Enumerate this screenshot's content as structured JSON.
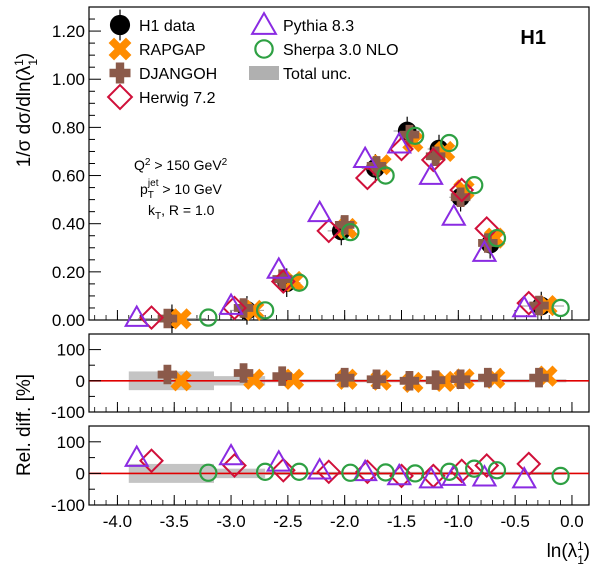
{
  "chart_data": {
    "type": "scatter",
    "experiment_label": "H1",
    "xlabel": "ln(λ",
    "xlabel_sub": "1",
    "xlabel_sup": "1",
    "xlabel_close": ")",
    "xlim": [
      -4.25,
      0.15
    ],
    "xticks": [
      -4.0,
      -3.5,
      -3.0,
      -2.5,
      -2.0,
      -1.5,
      -1.0,
      -0.5,
      0.0
    ],
    "xtick_labels": [
      "-4.0",
      "-3.5",
      "-3.0",
      "-2.5",
      "-2.0",
      "-1.5",
      "-1.0",
      "-0.5",
      "0.0"
    ],
    "cuts": {
      "line1_main": "Q",
      "line1_sup": "2",
      "line1_rest": " > 150 GeV",
      "line1_sup2": "2",
      "line2_main": "p",
      "line2_sub": "T",
      "line2_sup": "jet",
      "line2_rest": " > 10 GeV",
      "line3_main": "k",
      "line3_sub": "T",
      "line3_rest": ", R = 1.0"
    },
    "legend": [
      {
        "label": "H1 data",
        "marker": "data"
      },
      {
        "label": "RAPGAP",
        "marker": "cross"
      },
      {
        "label": "DJANGOH",
        "marker": "plus"
      },
      {
        "label": "Herwig 7.2",
        "marker": "diamond"
      },
      {
        "label": "Pythia 8.3",
        "marker": "triangle"
      },
      {
        "label": "Sherpa 3.0 NLO",
        "marker": "circle"
      },
      {
        "label": "Total unc.",
        "marker": "band"
      }
    ],
    "colors": {
      "data": "#000000",
      "rapgap": "#ff8c00",
      "djangoh": "#8b5a4a",
      "herwig": "#d0103a",
      "pythia": "#8a2be2",
      "sherpa": "#2ea043",
      "band": "#b0b0b0",
      "ratio_line": "#e00000"
    },
    "panels": [
      {
        "id": "main",
        "ylabel": "1/σ dσ/dln(λ",
        "ylabel_sub": "1",
        "ylabel_sup": "1",
        "ylabel_close": ")",
        "ylim": [
          0,
          1.3
        ],
        "yticks": [
          0,
          0.2,
          0.4,
          0.6,
          0.8,
          1.0,
          1.2
        ],
        "ytick_labels": [
          "0.00",
          "0.20",
          "0.40",
          "0.60",
          "0.80",
          "1.00",
          "1.20"
        ],
        "series": [
          {
            "name": "H1 data",
            "key": "data",
            "x": [
              -3.52,
              -2.86,
              -2.51,
              -2.03,
              -1.73,
              -1.45,
              -1.17,
              -0.98,
              -0.72,
              -0.27
            ],
            "y": [
              0.005,
              0.04,
              0.155,
              0.37,
              0.63,
              0.785,
              0.71,
              0.51,
              0.315,
              0.058
            ],
            "xerr": [
              0.3,
              0.15,
              0.12,
              0.12,
              0.12,
              0.12,
              0.1,
              0.1,
              0.1,
              0.2
            ]
          },
          {
            "name": "RAPGAP",
            "key": "rapgap",
            "x": [
              -3.44,
              -2.8,
              -2.45,
              -1.98,
              -1.68,
              -1.4,
              -1.12,
              -0.95,
              -0.68,
              -0.22
            ],
            "y": [
              0.005,
              0.04,
              0.16,
              0.38,
              0.645,
              0.74,
              0.7,
              0.54,
              0.34,
              0.06
            ]
          },
          {
            "name": "DJANGOH",
            "key": "djangoh",
            "x": [
              -3.56,
              -2.89,
              -2.55,
              -2.0,
              -1.72,
              -1.43,
              -1.2,
              -0.98,
              -0.74,
              -0.29
            ],
            "y": [
              0.006,
              0.05,
              0.17,
              0.395,
              0.64,
              0.77,
              0.68,
              0.51,
              0.32,
              0.06
            ]
          },
          {
            "name": "Herwig 7.2",
            "key": "herwig",
            "x": [
              -3.7,
              -2.97,
              -2.54,
              -2.14,
              -1.8,
              -1.5,
              -1.22,
              -0.97,
              -0.75,
              -0.38
            ],
            "y": [
              0.01,
              0.05,
              0.16,
              0.37,
              0.59,
              0.71,
              0.665,
              0.54,
              0.38,
              0.07
            ]
          },
          {
            "name": "Pythia 8.3",
            "key": "pythia",
            "x": [
              -3.83,
              -3.0,
              -2.58,
              -2.22,
              -1.82,
              -1.52,
              -1.24,
              -1.04,
              -0.77,
              -0.42
            ],
            "y": [
              0.01,
              0.06,
              0.21,
              0.445,
              0.67,
              0.73,
              0.6,
              0.43,
              0.28,
              0.05
            ]
          },
          {
            "name": "Sherpa 3.0 NLO",
            "key": "sherpa",
            "x": [
              -3.2,
              -2.7,
              -2.4,
              -1.95,
              -1.64,
              -1.38,
              -1.08,
              -0.86,
              -0.66,
              -0.1
            ],
            "y": [
              0.01,
              0.04,
              0.155,
              0.365,
              0.6,
              0.765,
              0.735,
              0.56,
              0.34,
              0.05
            ]
          }
        ],
        "band": []
      },
      {
        "id": "ratio1",
        "ylabel": "Rel. diff. [%]",
        "ylim": [
          -100,
          150
        ],
        "yticks": [
          -100,
          0,
          100
        ],
        "ytick_labels": [
          "-100",
          "0",
          "100"
        ],
        "series": [
          {
            "name": "RAPGAP",
            "key": "rapgap",
            "x": [
              -3.44,
              -2.8,
              -2.45,
              -1.98,
              -1.68,
              -1.4,
              -1.12,
              -0.95,
              -0.68,
              -0.22
            ],
            "y": [
              0,
              5,
              5,
              5,
              2,
              -5,
              -2,
              6,
              8,
              15
            ]
          },
          {
            "name": "DJANGOH",
            "key": "djangoh",
            "x": [
              -3.56,
              -2.89,
              -2.55,
              -2.0,
              -1.72,
              -1.43,
              -1.2,
              -0.98,
              -0.74,
              -0.29
            ],
            "y": [
              20,
              25,
              15,
              10,
              5,
              0,
              2,
              5,
              10,
              10
            ]
          }
        ],
        "band": [
          {
            "x0": -3.9,
            "x1": -3.15,
            "lo": -30,
            "hi": 30
          },
          {
            "x0": -3.15,
            "x1": -2.7,
            "lo": -15,
            "hi": 15
          },
          {
            "x0": -2.7,
            "x1": -0.05,
            "lo": -5,
            "hi": 5
          }
        ]
      },
      {
        "id": "ratio2",
        "ylabel": "",
        "ylim": [
          -100,
          150
        ],
        "yticks": [
          -100,
          0,
          100
        ],
        "ytick_labels": [
          "-100",
          "0",
          "100"
        ],
        "series": [
          {
            "name": "Herwig 7.2",
            "key": "herwig",
            "x": [
              -3.7,
              -2.97,
              -2.54,
              -2.14,
              -1.8,
              -1.5,
              -1.22,
              -0.97,
              -0.75,
              -0.38
            ],
            "y": [
              40,
              25,
              10,
              5,
              5,
              -8,
              -8,
              8,
              25,
              30
            ]
          },
          {
            "name": "Pythia 8.3",
            "key": "pythia",
            "x": [
              -3.83,
              -3.0,
              -2.58,
              -2.22,
              -1.82,
              -1.52,
              -1.24,
              -1.04,
              -0.77,
              -0.42
            ],
            "y": [
              50,
              55,
              35,
              10,
              5,
              -8,
              -18,
              -10,
              -12,
              -18
            ]
          },
          {
            "name": "Sherpa 3.0 NLO",
            "key": "sherpa",
            "x": [
              -3.2,
              -2.7,
              -2.4,
              -1.95,
              -1.64,
              -1.38,
              -1.08,
              -0.86,
              -0.66,
              -0.1
            ],
            "y": [
              2,
              5,
              5,
              2,
              3,
              0,
              5,
              15,
              10,
              -8
            ]
          }
        ],
        "band": [
          {
            "x0": -3.9,
            "x1": -3.15,
            "lo": -30,
            "hi": 30
          },
          {
            "x0": -3.15,
            "x1": -2.7,
            "lo": -15,
            "hi": 15
          },
          {
            "x0": -2.7,
            "x1": -0.05,
            "lo": -5,
            "hi": 5
          }
        ]
      }
    ]
  }
}
